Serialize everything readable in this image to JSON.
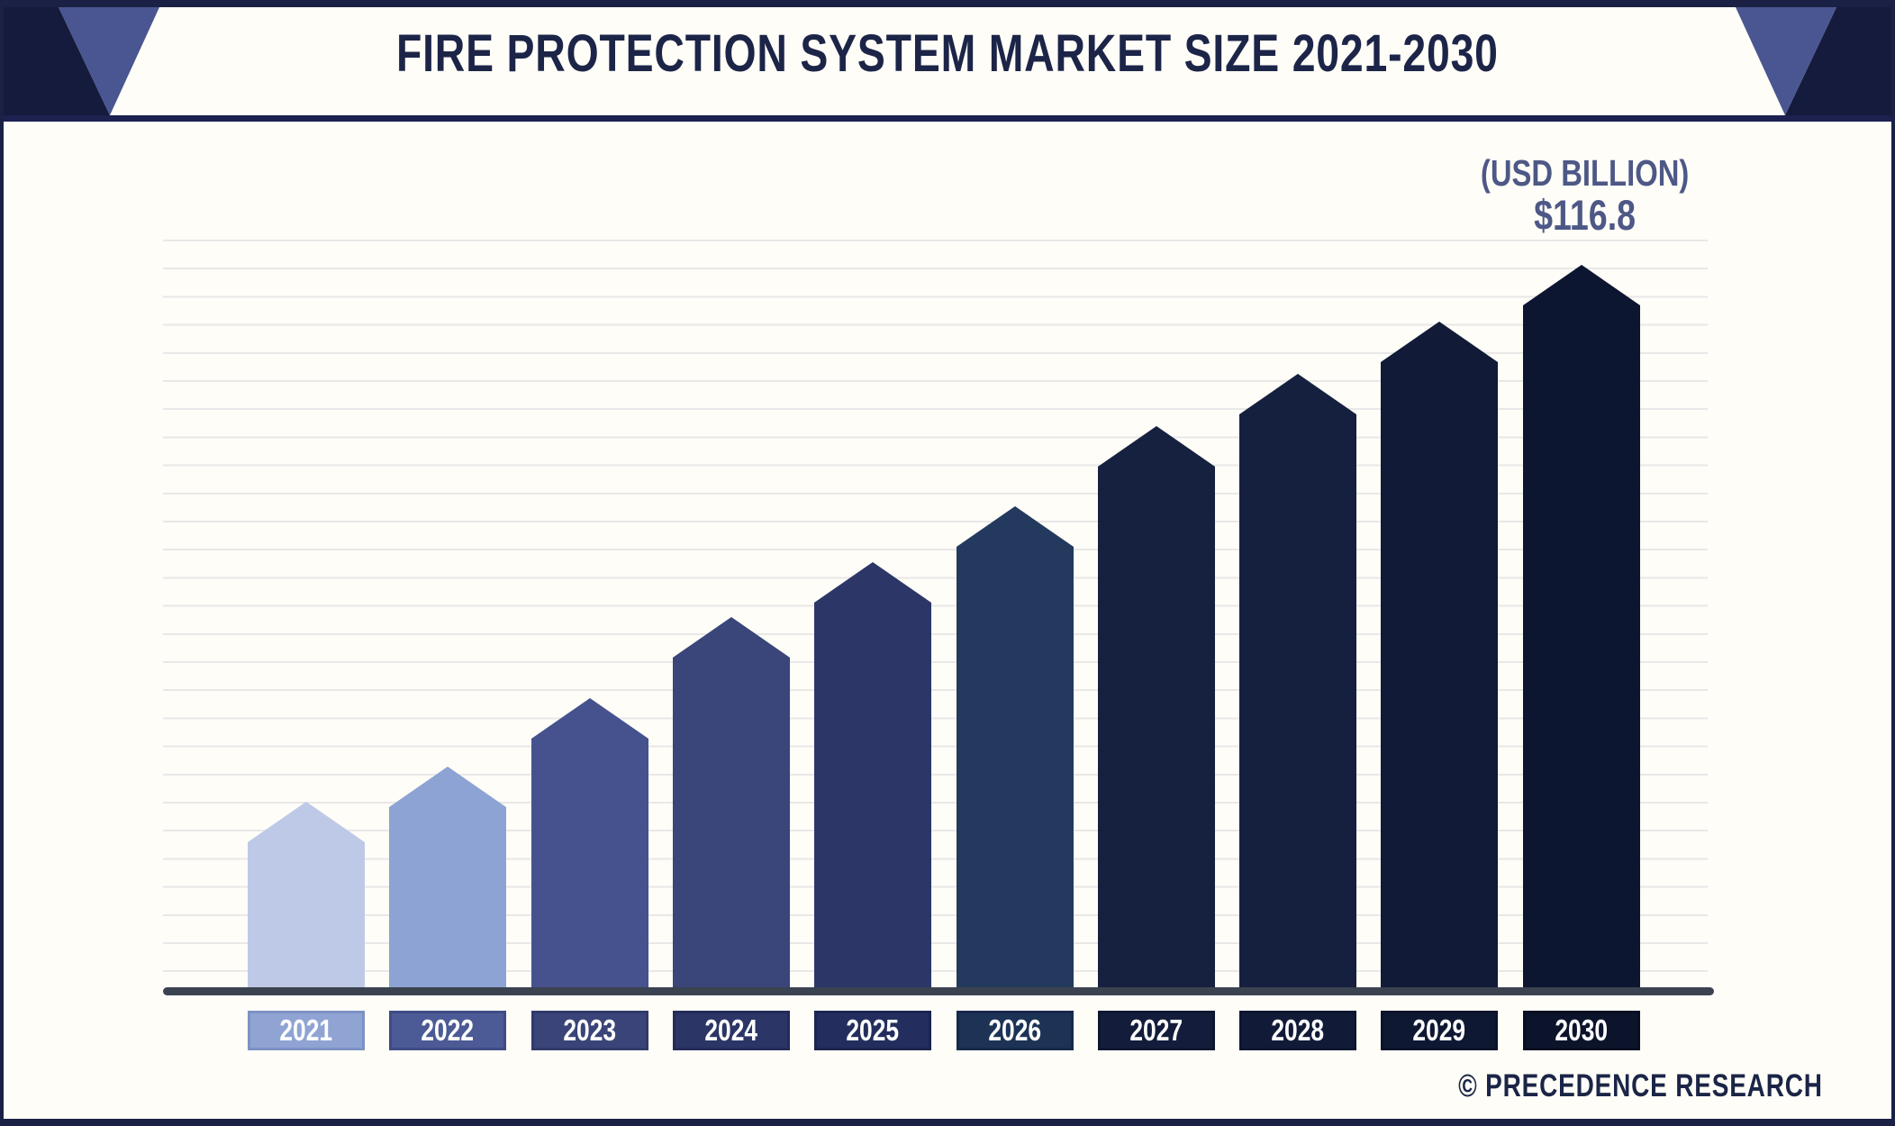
{
  "frame": {
    "strip_color": "#1a2144",
    "rule_color": "#1c2150",
    "background": "#fffdf7"
  },
  "header": {
    "title": "FIRE PROTECTION SYSTEM MARKET SIZE 2021-2030",
    "title_color": "#1c2548",
    "corner_navy_color": "#141b3c",
    "corner_slate_color": "#4a5691"
  },
  "annotation": {
    "unit_label": "(USD BILLION)",
    "value_label": "$116.8",
    "color": "#4d5886"
  },
  "watermark": {
    "text": "© PRECEDENCE RESEARCH",
    "color": "#1b2547"
  },
  "chart_data": {
    "type": "bar",
    "title": "FIRE PROTECTION SYSTEM MARKET SIZE 2021-2030",
    "unit": "USD Billion",
    "categories": [
      "2021",
      "2022",
      "2023",
      "2024",
      "2025",
      "2026",
      "2027",
      "2028",
      "2029",
      "2030"
    ],
    "values": [
      30.1,
      35.8,
      46.8,
      59.9,
      68.8,
      77.8,
      90.8,
      99.2,
      107.6,
      116.8
    ],
    "value_note": "Only 2030 is labeled on the chart ($116.8); other values estimated from bar heights",
    "labeled_points": [
      {
        "category": "2030",
        "label": "$116.8"
      }
    ],
    "bar_colors": [
      "#bdc9e6",
      "#8da3d3",
      "#46528e",
      "#3a4579",
      "#2c3768",
      "#233a5e",
      "#16203f",
      "#151f3e",
      "#111b37",
      "#0d1630"
    ],
    "chip_colors": [
      "#8fa4d3",
      "#4c5a95",
      "#3a4478",
      "#2b3566",
      "#232e5e",
      "#1c3356",
      "#131d3b",
      "#111b38",
      "#0f1833",
      "#0c142c"
    ],
    "chip_border_colors": [
      "#7c91c4",
      "#3f4c85",
      "#303a6b",
      "#232c59",
      "#1c2550",
      "#16294a",
      "#0e1730",
      "#0d1630",
      "#0b132a",
      "#080f23"
    ],
    "axis_color": "#3b4250",
    "gridline_color": "#e8e8e8",
    "grid": "horizontal",
    "legend": "none",
    "ylim": [
      0,
      125
    ],
    "xlabel": "",
    "ylabel": ""
  }
}
